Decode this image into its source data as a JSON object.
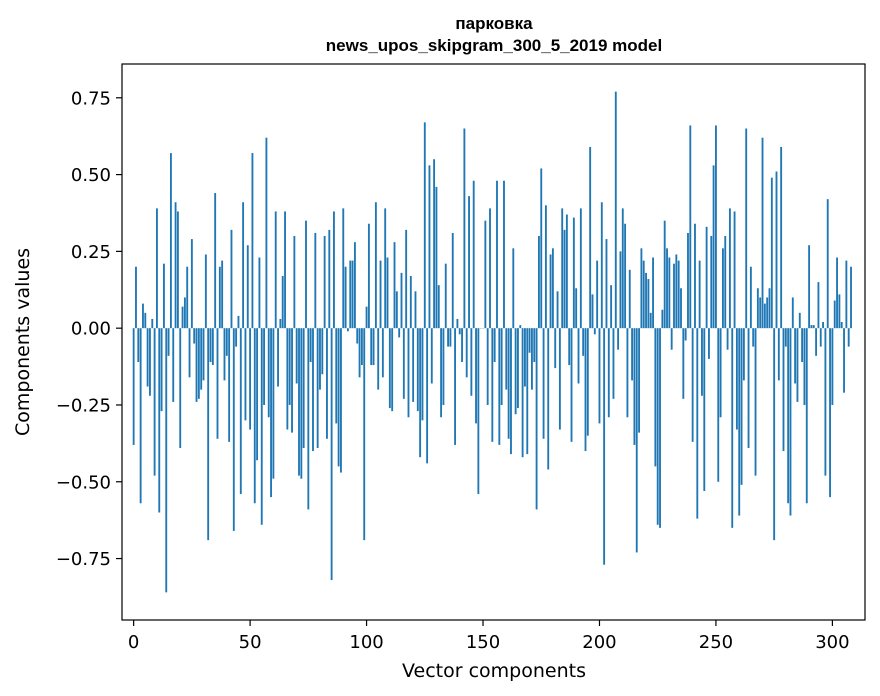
{
  "chart_data": {
    "type": "bar",
    "title": "парковка",
    "subtitle": "news_upos_skipgram_300_5_2019 model",
    "xlabel": "Vector components",
    "ylabel": "Components values",
    "xlim": [
      -5,
      314
    ],
    "ylim": [
      -0.95,
      0.86
    ],
    "xticks": [
      0,
      50,
      100,
      150,
      200,
      250,
      300
    ],
    "xtick_labels": [
      "0",
      "50",
      "100",
      "150",
      "200",
      "250",
      "300"
    ],
    "yticks": [
      -0.75,
      -0.5,
      -0.25,
      0.0,
      0.25,
      0.5,
      0.75
    ],
    "ytick_labels": [
      "−0.75",
      "−0.50",
      "−0.25",
      "0.00",
      "0.25",
      "0.50",
      "0.75"
    ],
    "color": "#1f77b4",
    "grid": false,
    "values": [
      -0.38,
      0.2,
      -0.11,
      -0.57,
      0.08,
      0.05,
      -0.19,
      -0.22,
      0.03,
      -0.48,
      0.39,
      -0.6,
      -0.27,
      0.21,
      -0.86,
      -0.09,
      0.57,
      -0.24,
      0.41,
      0.38,
      -0.39,
      0.07,
      0.1,
      0.2,
      -0.16,
      0.29,
      -0.05,
      -0.24,
      -0.23,
      -0.2,
      -0.17,
      0.24,
      -0.69,
      -0.11,
      -0.12,
      0.44,
      -0.36,
      0.2,
      0.22,
      -0.17,
      -0.09,
      -0.37,
      0.32,
      -0.66,
      -0.06,
      0.04,
      -0.54,
      0.41,
      -0.3,
      0.27,
      -0.33,
      0.57,
      -0.57,
      -0.43,
      0.23,
      -0.64,
      -0.25,
      0.62,
      -0.29,
      -0.55,
      -0.49,
      0.38,
      -0.19,
      0.03,
      0.17,
      0.38,
      -0.33,
      -0.25,
      -0.34,
      0.3,
      -0.18,
      -0.48,
      -0.49,
      -0.39,
      0.35,
      -0.59,
      -0.11,
      -0.4,
      0.31,
      -0.39,
      -0.2,
      -0.15,
      0.3,
      -0.36,
      0.32,
      -0.82,
      0.38,
      -0.31,
      -0.45,
      -0.47,
      0.39,
      0.2,
      -0.01,
      0.22,
      0.22,
      0.28,
      -0.05,
      -0.16,
      -0.12,
      -0.69,
      0.07,
      0.34,
      -0.12,
      -0.12,
      0.41,
      -0.2,
      0.22,
      -0.16,
      0.39,
      0.23,
      -0.26,
      -0.27,
      0.28,
      0.12,
      -0.03,
      0.18,
      -0.23,
      0.32,
      -0.29,
      0.17,
      -0.24,
      0.12,
      -0.27,
      -0.42,
      -0.3,
      0.67,
      -0.44,
      0.53,
      -0.18,
      0.55,
      0.46,
      0.14,
      -0.29,
      -0.25,
      0.21,
      -0.06,
      -0.06,
      0.31,
      -0.38,
      0.03,
      -0.02,
      -0.11,
      0.65,
      -0.16,
      0.43,
      -0.22,
      0.48,
      -0.31,
      -0.54,
      0.0,
      0.0,
      0.35,
      -0.25,
      0.39,
      -0.37,
      -0.11,
      0.48,
      -0.38,
      -0.25,
      0.48,
      -0.2,
      -0.36,
      -0.41,
      0.26,
      -0.28,
      -0.26,
      0.01,
      -0.42,
      -0.19,
      -0.41,
      -0.08,
      -0.2,
      -0.11,
      -0.59,
      0.3,
      0.52,
      -0.36,
      0.4,
      -0.46,
      0.24,
      0.26,
      -0.13,
      0.12,
      -0.33,
      0.39,
      0.32,
      0.37,
      -0.12,
      -0.37,
      0.36,
      0.13,
      -0.18,
      0.39,
      -0.09,
      -0.4,
      -0.35,
      0.59,
      0.11,
      -0.02,
      0.22,
      -0.31,
      0.41,
      -0.77,
      0.29,
      -0.29,
      0.14,
      -0.23,
      0.77,
      -0.07,
      0.25,
      0.39,
      0.34,
      -0.29,
      0.19,
      -0.17,
      -0.38,
      -0.73,
      -0.34,
      0.26,
      0.22,
      0.18,
      0.16,
      0.05,
      0.23,
      -0.45,
      -0.64,
      -0.65,
      0.06,
      0.35,
      0.26,
      0.23,
      -0.07,
      0.21,
      0.24,
      0.22,
      0.13,
      -0.23,
      -0.04,
      0.31,
      0.66,
      -0.37,
      0.34,
      -0.62,
      0.22,
      -0.22,
      -0.53,
      0.33,
      -0.1,
      0.3,
      0.53,
      0.66,
      -0.5,
      -0.29,
      0.26,
      0.3,
      -0.07,
      0.39,
      -0.65,
      0.38,
      -0.33,
      -0.61,
      -0.51,
      -0.17,
      0.65,
      -0.39,
      0.2,
      -0.06,
      -0.48,
      0.13,
      0.1,
      0.62,
      0.08,
      0.1,
      0.13,
      0.49,
      -0.69,
      0.51,
      -0.17,
      0.59,
      -0.4,
      -0.06,
      -0.57,
      -0.61,
      0.1,
      -0.18,
      -0.24,
      0.05,
      -0.11,
      -0.25,
      -0.57,
      0.27,
      0.01,
      0.01,
      -0.09,
      0.15,
      -0.06,
      0.02,
      -0.48,
      0.42,
      -0.55,
      -0.25,
      0.09,
      0.23,
      0.11,
      0.02,
      -0.21,
      0.22,
      -0.06,
      0.2
    ]
  }
}
